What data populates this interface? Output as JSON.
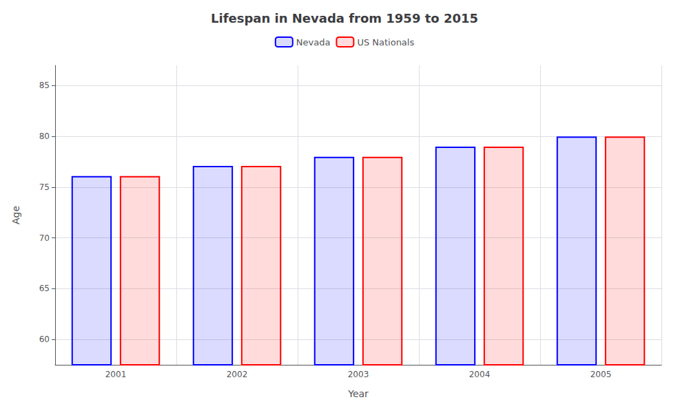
{
  "chart_data": {
    "type": "bar",
    "title": "Lifespan in Nevada from 1959 to 2015",
    "x_label": "Year",
    "y_label": "Age",
    "categories": [
      2001,
      2002,
      2003,
      2004,
      2005
    ],
    "series": [
      {
        "name": "Nevada",
        "color": "#0000ff",
        "values": [
          76.1,
          77.1,
          78.0,
          79.0,
          80.0
        ]
      },
      {
        "name": "US Nationals",
        "color": "#ff0000",
        "values": [
          76.1,
          77.1,
          78.0,
          79.0,
          80.0
        ]
      }
    ],
    "ylim": [
      57.5,
      87
    ],
    "yticks": [
      60,
      65,
      70,
      75,
      80,
      85
    ],
    "grid": true,
    "legend": "top"
  }
}
